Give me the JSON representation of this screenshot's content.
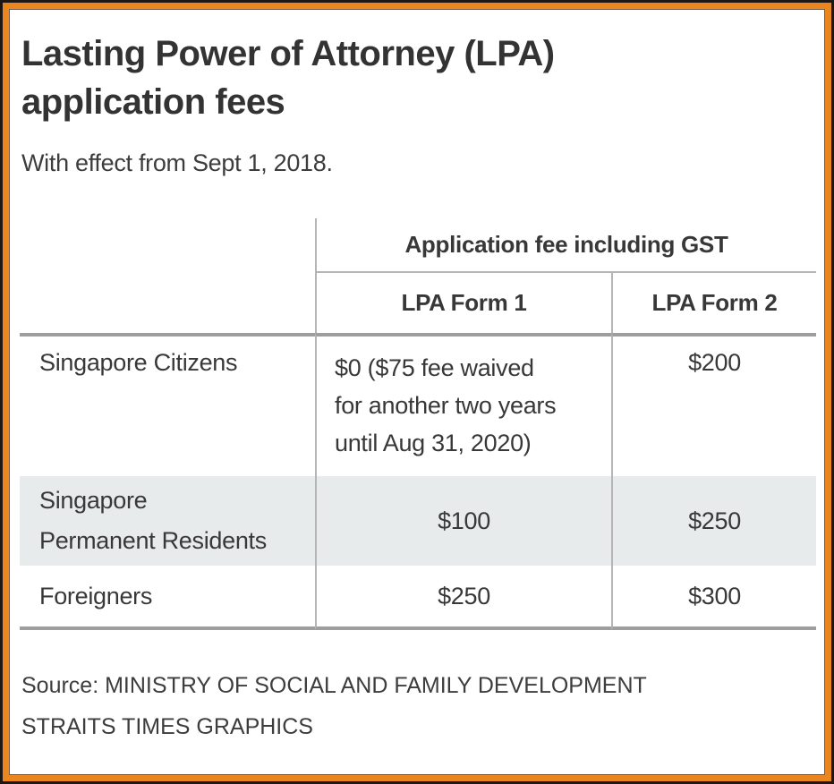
{
  "colors": {
    "frame_outline": "#1d1612",
    "frame_band": "#ea861f",
    "frame_inner_line": "#6b5e52",
    "shade": "#e8ebec",
    "thin_line": "#b5b5b5",
    "thick_line": "#9e9e9e",
    "text": "#383838"
  },
  "display": {
    "title": "Lasting Power of Attorney (LPA)\napplication fees",
    "row1_form1": "$0 ($75 fee waived\nfor another two years\nuntil Aug 31, 2020)",
    "row2_label": "Singapore\nPermanent Residents"
  },
  "footer": {
    "source_label": "Source: MINISTRY OF SOCIAL AND FAMILY DEVELOPMENT",
    "credit": "STRAITS TIMES GRAPHICS"
  },
  "chart_data": {
    "type": "table",
    "title": "Lasting Power of Attorney (LPA) application fees",
    "subtitle": "With effect from Sept 1, 2018.",
    "group_header": "Application fee including GST",
    "columns": [
      "LPA Form 1",
      "LPA Form 2"
    ],
    "rows": [
      [
        "Singapore Citizens",
        "$0 ($75 fee waived for another two years until Aug 31, 2020)",
        "$200"
      ],
      [
        "Singapore Permanent Residents",
        "$100",
        "$250"
      ],
      [
        "Foreigners",
        "$250",
        "$300"
      ]
    ],
    "shaded_row_index": 1,
    "source": "MINISTRY OF SOCIAL AND FAMILY DEVELOPMENT",
    "credit": "STRAITS TIMES GRAPHICS",
    "layout": {
      "grid": "partial-rules",
      "legend_position": "none"
    }
  }
}
